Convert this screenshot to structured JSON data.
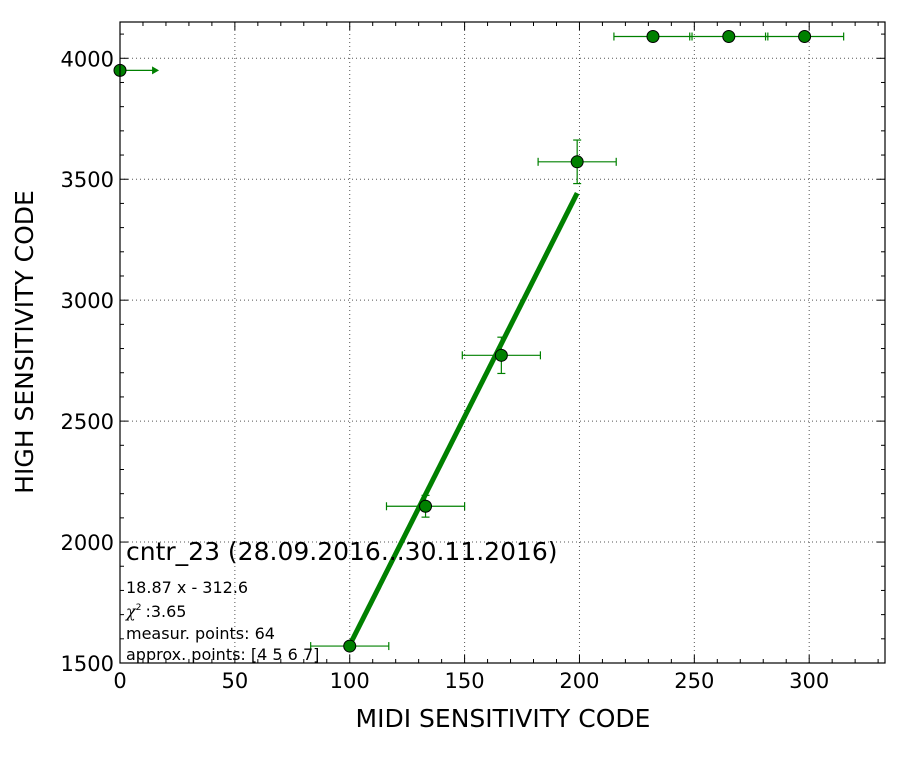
{
  "chart_data": {
    "type": "scatter",
    "title": "cntr_23 (28.09.2016...30.11.2016)",
    "xlabel": "MIDI SENSITIVITY CODE",
    "ylabel": "HIGH SENSITIVITY CODE",
    "xlim": [
      0,
      333
    ],
    "ylim": [
      1500,
      4150
    ],
    "xticks": [
      0,
      50,
      100,
      150,
      200,
      250,
      300
    ],
    "yticks": [
      1500,
      2000,
      2500,
      3000,
      3500,
      4000
    ],
    "grid": true,
    "color": "#008000",
    "annotations": {
      "fit": "18.87 x - 312.6",
      "chi_label": "χ",
      "chi_value": ":3.65",
      "measured": "measur. points: 64",
      "approx": "approx. points: [4 5 6 7]"
    },
    "points": [
      {
        "x": 0,
        "y": 3950,
        "xerr_right": 17,
        "arrow": "right"
      },
      {
        "x": 100,
        "y": 1570,
        "xerr": 17
      },
      {
        "x": 133,
        "y": 2148,
        "xerr": 17,
        "yerr": 45
      },
      {
        "x": 166,
        "y": 2772,
        "xerr": 17,
        "yerr": 75
      },
      {
        "x": 199,
        "y": 3572,
        "xerr": 17,
        "yerr": 90
      },
      {
        "x": 232,
        "y": 4090,
        "xerr": 17
      },
      {
        "x": 265,
        "y": 4090,
        "xerr": 17
      },
      {
        "x": 298,
        "y": 4090,
        "xerr": 17
      }
    ],
    "fit_line": {
      "slope": 18.87,
      "intercept": -312.6,
      "x_range": [
        100,
        199
      ]
    }
  }
}
